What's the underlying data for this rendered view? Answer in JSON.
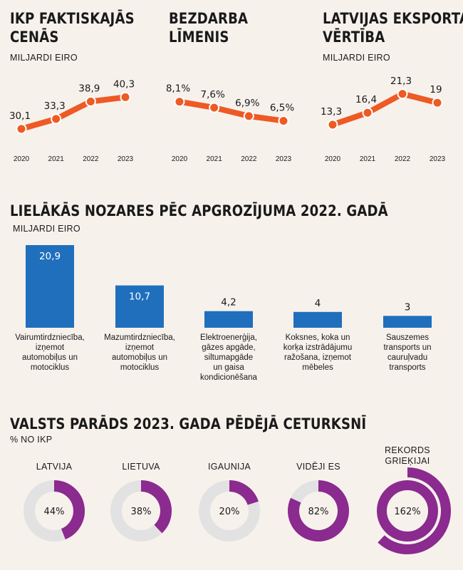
{
  "line_charts": [
    {
      "title_line1": "IKP FAKTISKAJĀS",
      "title_line2": "CENĀS",
      "unit": "MILJARDI EIRO"
    },
    {
      "title_line1": "BEZDARBA",
      "title_line2": "LĪMENIS",
      "unit": ""
    },
    {
      "title_line1": "LATVIJAS EKSPORTA",
      "title_line2": "VĒRTĪBA",
      "unit": "MILJARDI EIRO"
    }
  ],
  "bar_section": {
    "title": "LIELĀKĀS NOZARES PĒC APGROZĪJUMA 2022. GADĀ",
    "unit": "MILJARDI EIRO"
  },
  "donut_section": {
    "title": "VALSTS PARĀDS 2023. GADA PĒDĒJĀ CETURKSNĪ",
    "unit": "% NO IKP"
  },
  "colors": {
    "line": "#ee5a24",
    "bar": "#1f6fbd",
    "donut": "#8b2a8f",
    "track": "#e2e2e2"
  },
  "chart_data": [
    {
      "type": "line",
      "title": "IKP FAKTISKAJĀS CENĀS",
      "ylabel": "MILJARDI EIRO",
      "x": [
        "2020",
        "2021",
        "2022",
        "2023"
      ],
      "values": [
        30.1,
        33.3,
        38.9,
        40.3
      ],
      "labels": [
        "30,1",
        "33,3",
        "38,9",
        "40,3"
      ],
      "ylim": [
        28,
        42
      ]
    },
    {
      "type": "line",
      "title": "BEZDARBA LĪMENIS",
      "x": [
        "2020",
        "2021",
        "2022",
        "2023"
      ],
      "values": [
        8.1,
        7.6,
        6.9,
        6.5
      ],
      "labels": [
        "8,1%",
        "7,6%",
        "6,9%",
        "6,5%"
      ],
      "ylim": [
        6,
        8.5
      ]
    },
    {
      "type": "line",
      "title": "LATVIJAS EKSPORTA VĒRTĪBA",
      "ylabel": "MILJARDI EIRO",
      "x": [
        "2020",
        "2021",
        "2022",
        "2023"
      ],
      "values": [
        13.3,
        16.4,
        21.3,
        19
      ],
      "labels": [
        "13,3",
        "16,4",
        "21,3",
        "19"
      ],
      "ylim": [
        12,
        22
      ]
    },
    {
      "type": "bar",
      "title": "LIELĀKĀS NOZARES PĒC APGROZĪJUMA 2022. GADĀ",
      "ylabel": "MILJARDI EIRO",
      "categories": [
        [
          "Vairumtirdzniecība,",
          "izņemot",
          "automobiļus un",
          "motociklus"
        ],
        [
          "Mazumtirdzniecība,",
          "izņemot",
          "automobiļus un",
          "motociklus"
        ],
        [
          "Elektroenerģija,",
          "gāzes apgāde,",
          "siltumapgāde",
          "un gaisa",
          "kondicionēšana"
        ],
        [
          "Koksnes, koka un",
          "korķa izstrādājumu",
          "ražošana, izņemot",
          "mēbeles"
        ],
        [
          "Sauszemes",
          "transports un",
          "cauruļvadu",
          "transports"
        ]
      ],
      "values": [
        20.9,
        10.7,
        4.2,
        4,
        3
      ],
      "labels": [
        "20,9",
        "10,7",
        "4,2",
        "4",
        "3"
      ]
    },
    {
      "type": "pie",
      "title": "VALSTS PARĀDS 2023. GADA PĒDĒJĀ CETURKSNĪ",
      "ylabel": "% NO IKP",
      "categories": [
        "LATVIJA",
        "LIETUVA",
        "IGAUNIJA",
        "VIDĒJI ES",
        "REKORDS GRIEĶIJAI"
      ],
      "values": [
        44,
        38,
        20,
        82,
        162
      ],
      "labels": [
        "44%",
        "38%",
        "20%",
        "82%",
        "162%"
      ]
    }
  ]
}
